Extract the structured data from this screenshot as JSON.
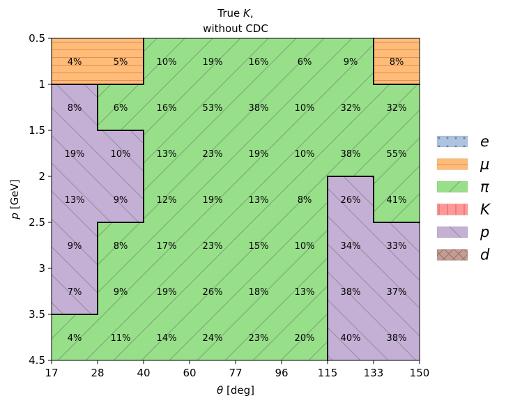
{
  "chart_data": {
    "type": "heatmap",
    "title_line1": "True K,",
    "title_line1_plain": "True ",
    "title_line1_italic": "K",
    "title_line1_tail": ",",
    "title_line2": "without CDC",
    "xlabel_symbol": "θ",
    "xlabel_unit": " [deg]",
    "ylabel_symbol": "p",
    "ylabel_unit": " [GeV]",
    "x_ticks": [
      "17",
      "28",
      "40",
      "60",
      "77",
      "96",
      "115",
      "133",
      "150"
    ],
    "y_ticks": [
      "0.5",
      "1",
      "1.5",
      "2",
      "2.5",
      "3",
      "3.5",
      "4.5"
    ],
    "x_bins": [
      [
        17,
        28
      ],
      [
        28,
        40
      ],
      [
        40,
        60
      ],
      [
        60,
        77
      ],
      [
        77,
        96
      ],
      [
        96,
        115
      ],
      [
        115,
        133
      ],
      [
        133,
        150
      ]
    ],
    "y_bins": [
      [
        0.5,
        1
      ],
      [
        1,
        1.5
      ],
      [
        1.5,
        2
      ],
      [
        2,
        2.5
      ],
      [
        2.5,
        3
      ],
      [
        3,
        3.5
      ],
      [
        3.5,
        4.5
      ]
    ],
    "values": [
      [
        "4%",
        "5%",
        "10%",
        "19%",
        "16%",
        "6%",
        "9%",
        "8%"
      ],
      [
        "8%",
        "6%",
        "16%",
        "53%",
        "38%",
        "10%",
        "32%",
        "32%"
      ],
      [
        "19%",
        "10%",
        "13%",
        "23%",
        "19%",
        "10%",
        "38%",
        "55%"
      ],
      [
        "13%",
        "9%",
        "12%",
        "19%",
        "13%",
        "8%",
        "26%",
        "41%"
      ],
      [
        "9%",
        "8%",
        "17%",
        "23%",
        "15%",
        "10%",
        "34%",
        "33%"
      ],
      [
        "7%",
        "9%",
        "19%",
        "26%",
        "18%",
        "13%",
        "38%",
        "37%"
      ],
      [
        "4%",
        "11%",
        "14%",
        "24%",
        "23%",
        "20%",
        "40%",
        "38%"
      ]
    ],
    "class_map": [
      [
        "mu",
        "mu",
        "pi",
        "pi",
        "pi",
        "pi",
        "pi",
        "mu"
      ],
      [
        "p",
        "pi",
        "pi",
        "pi",
        "pi",
        "pi",
        "pi",
        "pi"
      ],
      [
        "p",
        "p",
        "pi",
        "pi",
        "pi",
        "pi",
        "pi",
        "pi"
      ],
      [
        "p",
        "p",
        "pi",
        "pi",
        "pi",
        "pi",
        "p",
        "pi"
      ],
      [
        "p",
        "pi",
        "pi",
        "pi",
        "pi",
        "pi",
        "p",
        "p"
      ],
      [
        "p",
        "pi",
        "pi",
        "pi",
        "pi",
        "pi",
        "p",
        "p"
      ],
      [
        "pi",
        "pi",
        "pi",
        "pi",
        "pi",
        "pi",
        "p",
        "p"
      ]
    ],
    "legend": [
      {
        "key": "e",
        "label": "e",
        "color": "#aec3df",
        "hatch": "dots"
      },
      {
        "key": "mu",
        "label": "μ",
        "color": "#ffbb78",
        "hatch": "horizontal"
      },
      {
        "key": "pi",
        "label": "π",
        "color": "#98df8a",
        "hatch": "diag-up"
      },
      {
        "key": "K",
        "label": "K",
        "color": "#ff9896",
        "hatch": "vertical"
      },
      {
        "key": "p",
        "label": "p",
        "color": "#c5b0d5",
        "hatch": "diag-down"
      },
      {
        "key": "d",
        "label": "d",
        "color": "#c49c94",
        "hatch": "cross"
      }
    ],
    "legend_position": "right"
  }
}
